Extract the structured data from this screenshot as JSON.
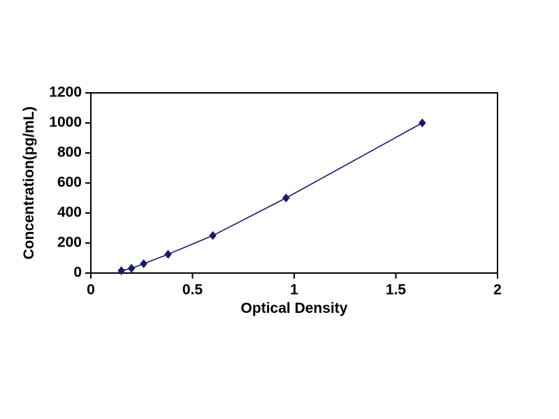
{
  "chart_data": {
    "type": "line",
    "title": "",
    "xlabel": "Optical Density",
    "ylabel": "Concentration(pg/mL)",
    "x": [
      0.15,
      0.2,
      0.26,
      0.38,
      0.6,
      0.96,
      1.63
    ],
    "y": [
      15.6,
      31.2,
      62.5,
      125,
      250,
      500,
      1000
    ],
    "xlim": [
      0,
      2
    ],
    "ylim": [
      0,
      1200
    ],
    "x_ticks": [
      0,
      0.5,
      1,
      1.5,
      2
    ],
    "x_tick_labels": [
      "0",
      "0.5",
      "1",
      "1.5",
      "2"
    ],
    "y_ticks": [
      0,
      200,
      400,
      600,
      800,
      1000,
      1200
    ],
    "y_tick_labels": [
      "0",
      "200",
      "400",
      "600",
      "800",
      "1000",
      "1200"
    ],
    "grid": false,
    "legend_position": "none",
    "marker": "diamond",
    "line_color": "#191970",
    "marker_color": "#191970",
    "axis_color": "#000000",
    "background_color": "#ffffff"
  }
}
